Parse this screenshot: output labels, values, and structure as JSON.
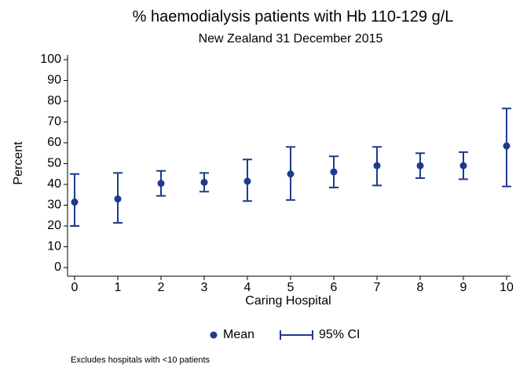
{
  "chart_data": {
    "type": "errorbar",
    "title": "% haemodialysis patients with Hb 110-129 g/L",
    "subtitle": "New Zealand 31 December 2015",
    "x_label": "Caring Hospital",
    "y_label": "Percent",
    "note": "Excludes hospitals with <10 patients",
    "x": [
      0,
      1,
      2,
      3,
      4,
      5,
      6,
      7,
      8,
      9,
      10
    ],
    "series": [
      {
        "name": "Mean",
        "color": "#1f3a8c",
        "values": [
          31.5,
          33,
          40.5,
          41,
          41.5,
          45,
          46,
          49,
          49,
          49,
          58.5
        ]
      }
    ],
    "ci": {
      "name": "95% CI",
      "color": "#1f3a8c",
      "lower": [
        20,
        21.5,
        34.5,
        36.5,
        32,
        32.5,
        38.5,
        39.5,
        43,
        42.5,
        39
      ],
      "upper": [
        45,
        45.5,
        46.5,
        45.5,
        52,
        58,
        53.5,
        58,
        55,
        55.5,
        76.5
      ]
    },
    "xlim": [
      0,
      10
    ],
    "xticks": [
      0,
      1,
      2,
      3,
      4,
      5,
      6,
      7,
      8,
      9,
      10
    ],
    "ylim": [
      0,
      100
    ],
    "yticks": [
      0,
      10,
      20,
      30,
      40,
      50,
      60,
      70,
      80,
      90,
      100
    ],
    "grid": false
  }
}
